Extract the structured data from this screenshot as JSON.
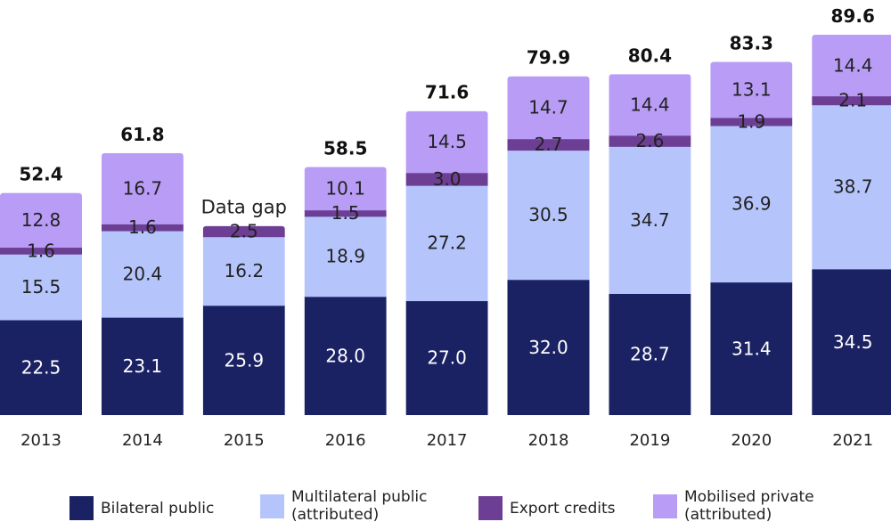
{
  "chart_data": {
    "type": "bar",
    "stacked": true,
    "title": "",
    "xlabel": "",
    "ylabel": "",
    "ylim": [
      0,
      92
    ],
    "categories": [
      "2013",
      "2014",
      "2015",
      "2016",
      "2017",
      "2018",
      "2019",
      "2020",
      "2021"
    ],
    "series": [
      {
        "name": "Bilateral public",
        "color": "#1b2264",
        "label_color": "#ffffff",
        "values": [
          22.5,
          23.1,
          25.9,
          28.0,
          27.0,
          32.0,
          28.7,
          31.4,
          34.5
        ],
        "labels": [
          "22.5",
          "23.1",
          "25.9",
          "28.0",
          "27.0",
          "32.0",
          "28.7",
          "31.4",
          "34.5"
        ]
      },
      {
        "name": "Multilateral public\n(attributed)",
        "color": "#b5c5fb",
        "label_color": "#222222",
        "values": [
          15.5,
          20.4,
          16.2,
          18.9,
          27.2,
          30.5,
          34.7,
          36.9,
          38.7
        ],
        "labels": [
          "15.5",
          "20.4",
          "16.2",
          "18.9",
          "27.2",
          "30.5",
          "34.7",
          "36.9",
          "38.7"
        ]
      },
      {
        "name": "Export credits",
        "color": "#6c3e94",
        "label_color": "#222222",
        "values": [
          1.6,
          1.6,
          2.5,
          1.5,
          3.0,
          2.7,
          2.6,
          1.9,
          2.1
        ],
        "labels": [
          "1.6",
          "1.6",
          "2.5",
          "1.5",
          "3.0",
          "2.7",
          "2.6",
          "1.9",
          "2.1"
        ]
      },
      {
        "name": "Mobilised private\n(attributed)",
        "color": "#b89cf5",
        "label_color": "#222222",
        "values": [
          12.8,
          16.7,
          null,
          10.1,
          14.5,
          14.7,
          14.4,
          13.1,
          14.4
        ],
        "labels": [
          "12.8",
          "16.7",
          "",
          "10.1",
          "14.5",
          "14.7",
          "14.4",
          "13.1",
          "14.4"
        ]
      }
    ],
    "totals": [
      "52.4",
      "61.8",
      "",
      "58.5",
      "71.6",
      "79.9",
      "80.4",
      "83.3",
      "89.6"
    ],
    "annotations": [
      {
        "category": "2015",
        "text": "Data gap"
      }
    ],
    "grid": false,
    "legend": "bottom"
  }
}
